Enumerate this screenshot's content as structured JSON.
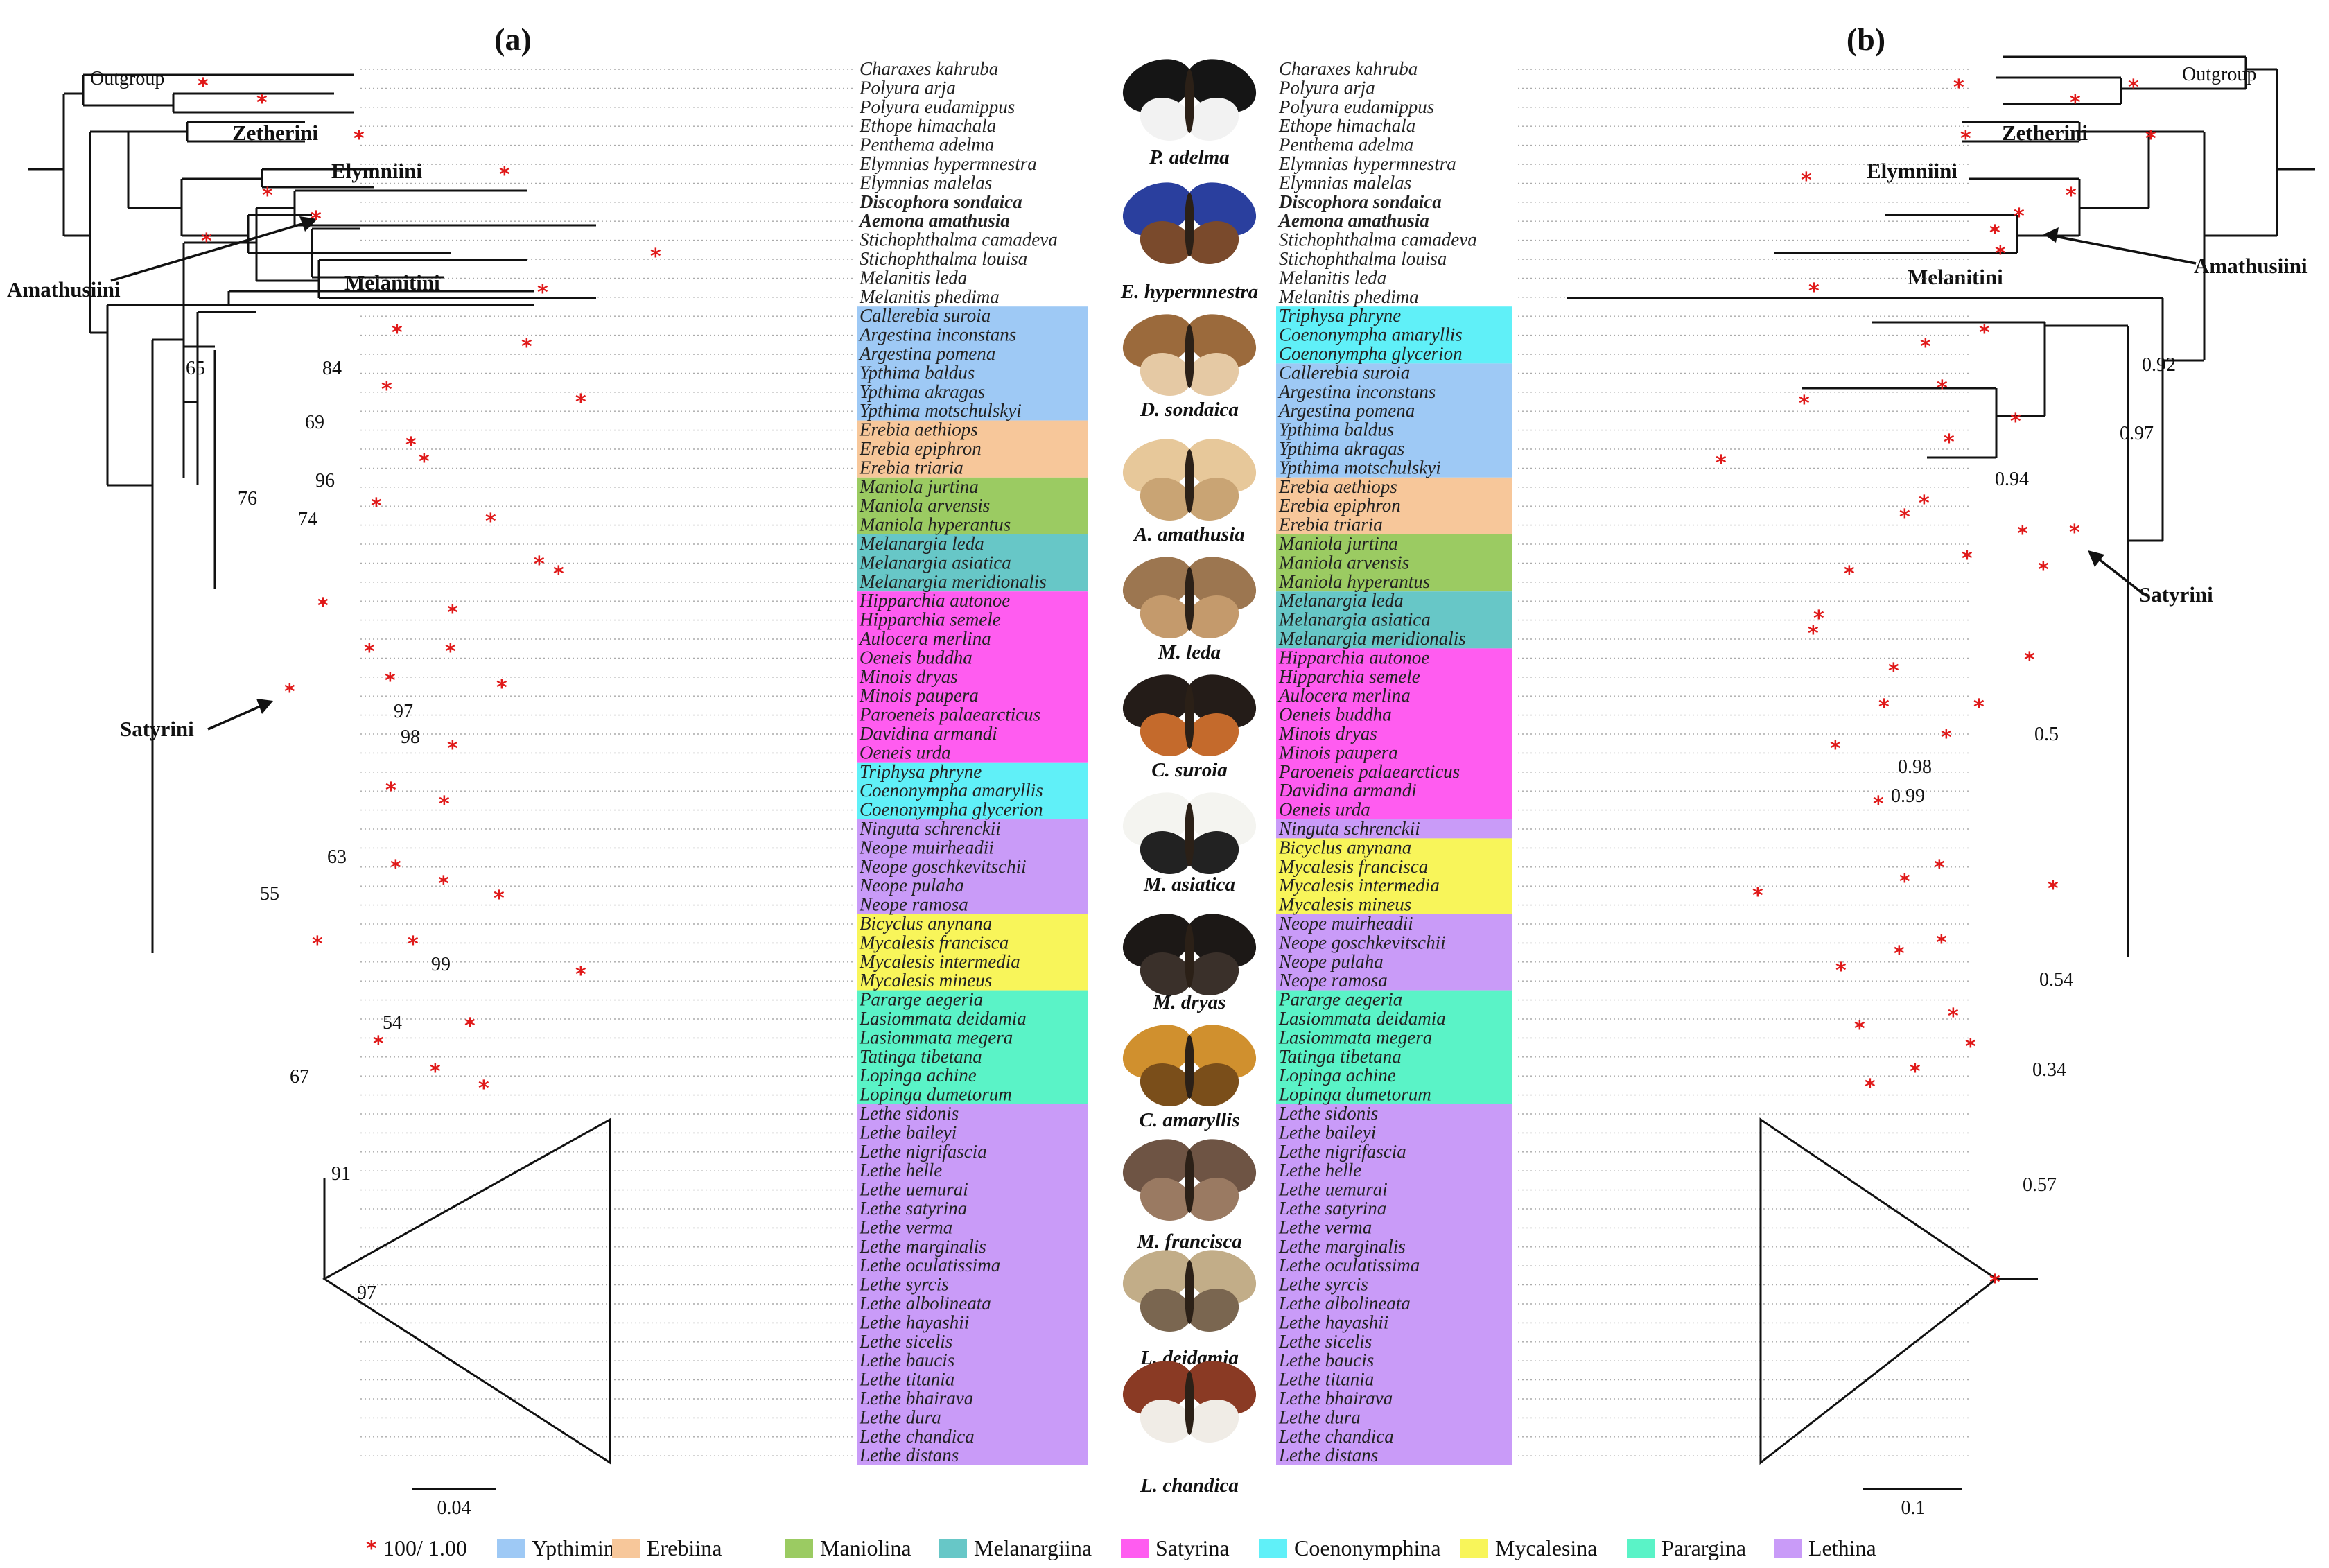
{
  "panels": {
    "left": "(a)",
    "right": "(b)"
  },
  "outgroup_label": "Outgroup",
  "clades": {
    "zetherini": "Zetherini",
    "elymniini": "Elymniini",
    "amathusiini": "Amathusiini",
    "melanitini": "Melanitini",
    "satyrini": "Satyrini"
  },
  "colors": {
    "Ypthimina": "#9ec9f5",
    "Erebiina": "#f7c79a",
    "Maniolina": "#9bcb62",
    "Melanargiina": "#67c7c7",
    "Satyrina": "#ff5cf0",
    "Coenonymphina": "#60f0f8",
    "Mycalesina": "#f8f55a",
    "Parargina": "#5af3c7",
    "Lethina": "#c99bf8"
  },
  "left_taxa": [
    {
      "name": "Charaxes kahruba",
      "g": ""
    },
    {
      "name": "Polyura arja",
      "g": ""
    },
    {
      "name": "Polyura eudamippus",
      "g": ""
    },
    {
      "name": "Ethope himachala",
      "g": ""
    },
    {
      "name": "Penthema adelma",
      "g": ""
    },
    {
      "name": "Elymnias hypermnestra",
      "g": ""
    },
    {
      "name": "Elymnias malelas",
      "g": ""
    },
    {
      "name": "Discophora sondaica",
      "g": "",
      "b": true
    },
    {
      "name": "Aemona amathusia",
      "g": "",
      "b": true
    },
    {
      "name": "Stichophthalma camadeva",
      "g": ""
    },
    {
      "name": "Stichophthalma louisa",
      "g": ""
    },
    {
      "name": "Melanitis leda",
      "g": ""
    },
    {
      "name": "Melanitis phedima",
      "g": ""
    },
    {
      "name": "Callerebia suroia",
      "g": "Ypthimina"
    },
    {
      "name": "Argestina inconstans",
      "g": "Ypthimina"
    },
    {
      "name": "Argestina pomena",
      "g": "Ypthimina"
    },
    {
      "name": "Ypthima baldus",
      "g": "Ypthimina"
    },
    {
      "name": "Ypthima akragas",
      "g": "Ypthimina"
    },
    {
      "name": "Ypthima motschulskyi",
      "g": "Ypthimina"
    },
    {
      "name": "Erebia aethiops",
      "g": "Erebiina"
    },
    {
      "name": "Erebia epiphron",
      "g": "Erebiina"
    },
    {
      "name": "Erebia triaria",
      "g": "Erebiina"
    },
    {
      "name": "Maniola jurtina",
      "g": "Maniolina"
    },
    {
      "name": "Maniola arvensis",
      "g": "Maniolina"
    },
    {
      "name": "Maniola hyperantus",
      "g": "Maniolina"
    },
    {
      "name": "Melanargia leda",
      "g": "Melanargiina"
    },
    {
      "name": "Melanargia asiatica",
      "g": "Melanargiina"
    },
    {
      "name": "Melanargia meridionalis",
      "g": "Melanargiina"
    },
    {
      "name": "Hipparchia autonoe",
      "g": "Satyrina"
    },
    {
      "name": "Hipparchia semele",
      "g": "Satyrina"
    },
    {
      "name": "Aulocera merlina",
      "g": "Satyrina"
    },
    {
      "name": "Oeneis buddha",
      "g": "Satyrina"
    },
    {
      "name": "Minois dryas",
      "g": "Satyrina"
    },
    {
      "name": "Minois paupera",
      "g": "Satyrina"
    },
    {
      "name": "Paroeneis palaearcticus",
      "g": "Satyrina"
    },
    {
      "name": "Davidina armandi",
      "g": "Satyrina"
    },
    {
      "name": "Oeneis urda",
      "g": "Satyrina"
    },
    {
      "name": "Triphysa phryne",
      "g": "Coenonymphina"
    },
    {
      "name": "Coenonympha amaryllis",
      "g": "Coenonymphina"
    },
    {
      "name": "Coenonympha glycerion",
      "g": "Coenonymphina"
    },
    {
      "name": "Ninguta schrenckii",
      "g": "Lethina"
    },
    {
      "name": "Neope muirheadii",
      "g": "Lethina"
    },
    {
      "name": "Neope goschkevitschii",
      "g": "Lethina"
    },
    {
      "name": "Neope pulaha",
      "g": "Lethina"
    },
    {
      "name": "Neope ramosa",
      "g": "Lethina"
    },
    {
      "name": "Bicyclus anynana",
      "g": "Mycalesina"
    },
    {
      "name": "Mycalesis francisca",
      "g": "Mycalesina"
    },
    {
      "name": "Mycalesis intermedia",
      "g": "Mycalesina"
    },
    {
      "name": "Mycalesis mineus",
      "g": "Mycalesina"
    },
    {
      "name": "Pararge aegeria",
      "g": "Parargina"
    },
    {
      "name": "Lasiommata deidamia",
      "g": "Parargina"
    },
    {
      "name": "Lasiommata megera",
      "g": "Parargina"
    },
    {
      "name": "Tatinga tibetana",
      "g": "Parargina"
    },
    {
      "name": "Lopinga achine",
      "g": "Parargina"
    },
    {
      "name": "Lopinga dumetorum",
      "g": "Parargina"
    },
    {
      "name": "Lethe sidonis",
      "g": "Lethina"
    },
    {
      "name": "Lethe baileyi",
      "g": "Lethina"
    },
    {
      "name": "Lethe nigrifascia",
      "g": "Lethina"
    },
    {
      "name": "Lethe helle",
      "g": "Lethina"
    },
    {
      "name": "Lethe uemurai",
      "g": "Lethina"
    },
    {
      "name": "Lethe satyrina",
      "g": "Lethina"
    },
    {
      "name": "Lethe verma",
      "g": "Lethina"
    },
    {
      "name": "Lethe marginalis",
      "g": "Lethina"
    },
    {
      "name": "Lethe oculatissima",
      "g": "Lethina"
    },
    {
      "name": "Lethe syrcis",
      "g": "Lethina"
    },
    {
      "name": "Lethe albolineata",
      "g": "Lethina"
    },
    {
      "name": "Lethe hayashii",
      "g": "Lethina"
    },
    {
      "name": "Lethe sicelis",
      "g": "Lethina"
    },
    {
      "name": "Lethe baucis",
      "g": "Lethina"
    },
    {
      "name": "Lethe titania",
      "g": "Lethina"
    },
    {
      "name": "Lethe bhairava",
      "g": "Lethina"
    },
    {
      "name": "Lethe dura",
      "g": "Lethina"
    },
    {
      "name": "Lethe chandica",
      "g": "Lethina"
    },
    {
      "name": "Lethe distans",
      "g": "Lethina"
    }
  ],
  "right_taxa": [
    {
      "name": "Charaxes kahruba",
      "g": ""
    },
    {
      "name": "Polyura arja",
      "g": ""
    },
    {
      "name": "Polyura eudamippus",
      "g": ""
    },
    {
      "name": "Ethope himachala",
      "g": ""
    },
    {
      "name": "Penthema adelma",
      "g": ""
    },
    {
      "name": "Elymnias hypermnestra",
      "g": ""
    },
    {
      "name": "Elymnias malelas",
      "g": ""
    },
    {
      "name": "Discophora sondaica",
      "g": "",
      "b": true
    },
    {
      "name": "Aemona amathusia",
      "g": "",
      "b": true
    },
    {
      "name": "Stichophthalma camadeva",
      "g": ""
    },
    {
      "name": "Stichophthalma louisa",
      "g": ""
    },
    {
      "name": "Melanitis leda",
      "g": ""
    },
    {
      "name": "Melanitis phedima",
      "g": ""
    },
    {
      "name": "Triphysa phryne",
      "g": "Coenonymphina"
    },
    {
      "name": "Coenonympha amaryllis",
      "g": "Coenonymphina"
    },
    {
      "name": "Coenonympha glycerion",
      "g": "Coenonymphina"
    },
    {
      "name": "Callerebia suroia",
      "g": "Ypthimina"
    },
    {
      "name": "Argestina inconstans",
      "g": "Ypthimina"
    },
    {
      "name": "Argestina pomena",
      "g": "Ypthimina"
    },
    {
      "name": "Ypthima baldus",
      "g": "Ypthimina"
    },
    {
      "name": "Ypthima akragas",
      "g": "Ypthimina"
    },
    {
      "name": "Ypthima motschulskyi",
      "g": "Ypthimina"
    },
    {
      "name": "Erebia aethiops",
      "g": "Erebiina"
    },
    {
      "name": "Erebia epiphron",
      "g": "Erebiina"
    },
    {
      "name": "Erebia triaria",
      "g": "Erebiina"
    },
    {
      "name": "Maniola jurtina",
      "g": "Maniolina"
    },
    {
      "name": "Maniola arvensis",
      "g": "Maniolina"
    },
    {
      "name": "Maniola hyperantus",
      "g": "Maniolina"
    },
    {
      "name": "Melanargia leda",
      "g": "Melanargiina"
    },
    {
      "name": "Melanargia asiatica",
      "g": "Melanargiina"
    },
    {
      "name": "Melanargia meridionalis",
      "g": "Melanargiina"
    },
    {
      "name": "Hipparchia autonoe",
      "g": "Satyrina"
    },
    {
      "name": "Hipparchia semele",
      "g": "Satyrina"
    },
    {
      "name": "Aulocera merlina",
      "g": "Satyrina"
    },
    {
      "name": "Oeneis buddha",
      "g": "Satyrina"
    },
    {
      "name": "Minois dryas",
      "g": "Satyrina"
    },
    {
      "name": "Minois paupera",
      "g": "Satyrina"
    },
    {
      "name": "Paroeneis palaearcticus",
      "g": "Satyrina"
    },
    {
      "name": "Davidina armandi",
      "g": "Satyrina"
    },
    {
      "name": "Oeneis urda",
      "g": "Satyrina"
    },
    {
      "name": "Ninguta schrenckii",
      "g": "Lethina"
    },
    {
      "name": "Bicyclus anynana",
      "g": "Mycalesina"
    },
    {
      "name": "Mycalesis francisca",
      "g": "Mycalesina"
    },
    {
      "name": "Mycalesis intermedia",
      "g": "Mycalesina"
    },
    {
      "name": "Mycalesis mineus",
      "g": "Mycalesina"
    },
    {
      "name": "Neope muirheadii",
      "g": "Lethina"
    },
    {
      "name": "Neope goschkevitschii",
      "g": "Lethina"
    },
    {
      "name": "Neope pulaha",
      "g": "Lethina"
    },
    {
      "name": "Neope ramosa",
      "g": "Lethina"
    },
    {
      "name": "Pararge aegeria",
      "g": "Parargina"
    },
    {
      "name": "Lasiommata deidamia",
      "g": "Parargina"
    },
    {
      "name": "Lasiommata megera",
      "g": "Parargina"
    },
    {
      "name": "Tatinga tibetana",
      "g": "Parargina"
    },
    {
      "name": "Lopinga achine",
      "g": "Parargina"
    },
    {
      "name": "Lopinga dumetorum",
      "g": "Parargina"
    },
    {
      "name": "Lethe sidonis",
      "g": "Lethina"
    },
    {
      "name": "Lethe baileyi",
      "g": "Lethina"
    },
    {
      "name": "Lethe nigrifascia",
      "g": "Lethina"
    },
    {
      "name": "Lethe helle",
      "g": "Lethina"
    },
    {
      "name": "Lethe uemurai",
      "g": "Lethina"
    },
    {
      "name": "Lethe satyrina",
      "g": "Lethina"
    },
    {
      "name": "Lethe verma",
      "g": "Lethina"
    },
    {
      "name": "Lethe marginalis",
      "g": "Lethina"
    },
    {
      "name": "Lethe oculatissima",
      "g": "Lethina"
    },
    {
      "name": "Lethe syrcis",
      "g": "Lethina"
    },
    {
      "name": "Lethe albolineata",
      "g": "Lethina"
    },
    {
      "name": "Lethe hayashii",
      "g": "Lethina"
    },
    {
      "name": "Lethe sicelis",
      "g": "Lethina"
    },
    {
      "name": "Lethe baucis",
      "g": "Lethina"
    },
    {
      "name": "Lethe titania",
      "g": "Lethina"
    },
    {
      "name": "Lethe bhairava",
      "g": "Lethina"
    },
    {
      "name": "Lethe dura",
      "g": "Lethina"
    },
    {
      "name": "Lethe chandica",
      "g": "Lethina"
    },
    {
      "name": "Lethe distans",
      "g": "Lethina"
    }
  ],
  "left_support": [
    "65",
    "84",
    "69",
    "96",
    "74",
    "76",
    "97",
    "98",
    "63",
    "55",
    "99",
    "54",
    "67",
    "91",
    "97"
  ],
  "right_support": [
    "0.92",
    "0.97",
    "0.94",
    "0.5",
    "0.98",
    "0.99",
    "0.54",
    "0.34",
    "0.57"
  ],
  "butterflies": [
    {
      "label": "P. adelma",
      "c1": "#151515",
      "c2": "#f2f2f2"
    },
    {
      "label": "E. hypermnestra",
      "c1": "#2a3f9e",
      "c2": "#7a4a2c"
    },
    {
      "label": "D. sondaica",
      "c1": "#9b6a3c",
      "c2": "#e5c9a4"
    },
    {
      "label": "A. amathusia",
      "c1": "#e7c89a",
      "c2": "#c9a474"
    },
    {
      "label": "M. leda",
      "c1": "#9c7650",
      "c2": "#c49a6c"
    },
    {
      "label": "C. suroia",
      "c1": "#241c18",
      "c2": "#c46a2c"
    },
    {
      "label": "M. asiatica",
      "c1": "#f4f4f0",
      "c2": "#222222"
    },
    {
      "label": "M. dryas",
      "c1": "#1c1816",
      "c2": "#3a302a"
    },
    {
      "label": "C. amaryllis",
      "c1": "#d0902e",
      "c2": "#7a4e1a"
    },
    {
      "label": "M. francisca",
      "c1": "#6e5444",
      "c2": "#9a7a62"
    },
    {
      "label": "L. deidamia",
      "c1": "#c2ad88",
      "c2": "#7a6650"
    },
    {
      "label": "L. chandica",
      "c1": "#8a3a24",
      "c2": "#f0ece6"
    }
  ],
  "scale": {
    "left": "0.04",
    "right": "0.1"
  },
  "legend": {
    "support": "100/ 1.00",
    "items": [
      "Ypthimina",
      "Erebiina",
      "Maniolina",
      "Melanargiina",
      "Satyrina",
      "Coenonymphina",
      "Mycalesina",
      "Parargina",
      "Lethina"
    ]
  }
}
